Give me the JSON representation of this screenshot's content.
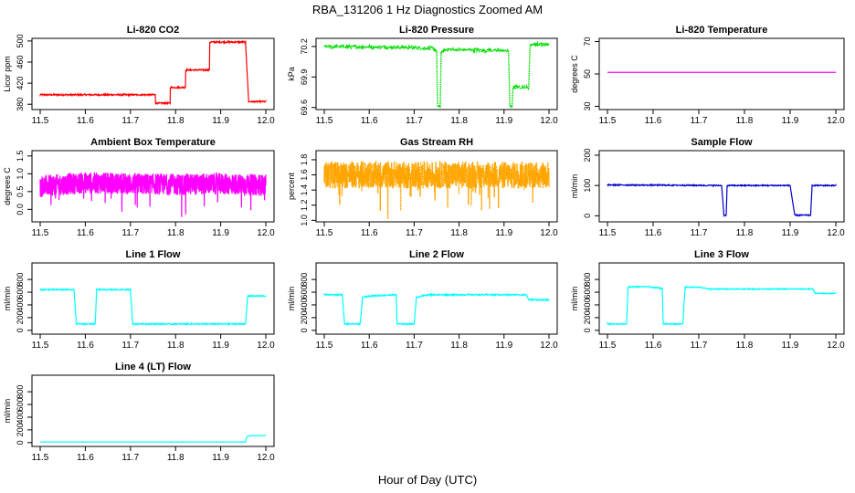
{
  "figure": {
    "title": "RBA_131206  1 Hz Diagnostics Zoomed AM",
    "xlabel": "Hour of Day (UTC)"
  },
  "chart_data": [
    {
      "id": "co2",
      "type": "line",
      "title": "Li-820 CO2",
      "ylabel": "Licor ppm",
      "xlim": [
        11.5,
        12.0
      ],
      "ylim": [
        370,
        505
      ],
      "xticks": [
        "11.5",
        "11.6",
        "11.7",
        "11.8",
        "11.9",
        "12.0"
      ],
      "yticks": [
        {
          "v": 380,
          "label": "380"
        },
        {
          "v": 420,
          "label": "420"
        },
        {
          "v": 460,
          "label": "460"
        },
        {
          "v": 500,
          "label": "500"
        }
      ],
      "color": "#ff0000",
      "noise": 1.5,
      "series": [
        [
          11.5,
          398
        ],
        [
          11.755,
          398
        ],
        [
          11.755,
          382
        ],
        [
          11.788,
          382
        ],
        [
          11.788,
          412
        ],
        [
          11.822,
          412
        ],
        [
          11.822,
          445
        ],
        [
          11.875,
          445
        ],
        [
          11.875,
          498
        ],
        [
          11.955,
          498
        ],
        [
          11.962,
          385
        ],
        [
          12.0,
          385
        ]
      ]
    },
    {
      "id": "pressure",
      "type": "line",
      "title": "Li-820 Pressure",
      "ylabel": "kPa",
      "xlim": [
        11.5,
        12.0
      ],
      "ylim": [
        69.58,
        70.28
      ],
      "xticks": [
        "11.5",
        "11.6",
        "11.7",
        "11.8",
        "11.9",
        "12.0"
      ],
      "yticks": [
        {
          "v": 69.6,
          "label": "69.6"
        },
        {
          "v": 69.9,
          "label": "69.9"
        },
        {
          "v": 70.2,
          "label": "70.2"
        }
      ],
      "color": "#00dd00",
      "noise": 0.015,
      "pointy": true,
      "series": [
        [
          11.5,
          70.2
        ],
        [
          11.7,
          70.19
        ],
        [
          11.742,
          70.18
        ],
        [
          11.75,
          70.15
        ],
        [
          11.752,
          69.62
        ],
        [
          11.758,
          69.6
        ],
        [
          11.76,
          70.14
        ],
        [
          11.77,
          70.17
        ],
        [
          11.9,
          70.16
        ],
        [
          11.91,
          70.15
        ],
        [
          11.913,
          69.62
        ],
        [
          11.918,
          69.6
        ],
        [
          11.92,
          69.8
        ],
        [
          11.955,
          69.8
        ],
        [
          11.958,
          70.22
        ],
        [
          12.0,
          70.22
        ]
      ]
    },
    {
      "id": "temperature",
      "type": "line",
      "title": "Li-820 Temperature",
      "ylabel": "degrees C",
      "xlim": [
        11.5,
        12.0
      ],
      "ylim": [
        28,
        72
      ],
      "xticks": [
        "11.5",
        "11.6",
        "11.7",
        "11.8",
        "11.9",
        "12.0"
      ],
      "yticks": [
        {
          "v": 30,
          "label": "30"
        },
        {
          "v": 50,
          "label": "50"
        },
        {
          "v": 70,
          "label": "70"
        }
      ],
      "color": "#ff00ff",
      "noise": 0,
      "series": [
        [
          11.5,
          51
        ],
        [
          12.0,
          51
        ]
      ]
    },
    {
      "id": "ambient",
      "type": "line",
      "title": "Ambient Box Temperature",
      "ylabel": "degrees C",
      "xlim": [
        11.5,
        12.0
      ],
      "ylim": [
        -0.35,
        1.65
      ],
      "xticks": [
        "11.5",
        "11.6",
        "11.7",
        "11.8",
        "11.9",
        "12.0"
      ],
      "yticks": [
        {
          "v": 0.0,
          "label": "0.0"
        },
        {
          "v": 0.5,
          "label": "0.5"
        },
        {
          "v": 1.0,
          "label": "1.0"
        },
        {
          "v": 1.5,
          "label": "1.5"
        }
      ],
      "color": "#ff00ff",
      "noise": 0.3,
      "dense": true,
      "series": [
        [
          11.5,
          0.65
        ],
        [
          11.6,
          0.75
        ],
        [
          11.7,
          0.72
        ],
        [
          11.8,
          0.7
        ],
        [
          11.9,
          0.72
        ],
        [
          12.0,
          0.68
        ]
      ]
    },
    {
      "id": "rh",
      "type": "line",
      "title": "Gas Stream RH",
      "ylabel": "percent",
      "xlim": [
        11.5,
        12.0
      ],
      "ylim": [
        0.98,
        1.92
      ],
      "xticks": [
        "11.5",
        "11.6",
        "11.7",
        "11.8",
        "11.9",
        "12.0"
      ],
      "yticks": [
        {
          "v": 1.0,
          "label": "1.0"
        },
        {
          "v": 1.2,
          "label": "1.2"
        },
        {
          "v": 1.4,
          "label": "1.4"
        },
        {
          "v": 1.6,
          "label": "1.6"
        },
        {
          "v": 1.8,
          "label": "1.8"
        }
      ],
      "color": "#ffa500",
      "noise": 0.18,
      "dense": true,
      "pointy": true,
      "series": [
        [
          11.5,
          1.6
        ],
        [
          12.0,
          1.6
        ]
      ]
    },
    {
      "id": "sampleflow",
      "type": "line",
      "title": "Sample Flow",
      "ylabel": "ml/min",
      "xlim": [
        11.5,
        12.0
      ],
      "ylim": [
        -20,
        215
      ],
      "xticks": [
        "11.5",
        "11.6",
        "11.7",
        "11.8",
        "11.9",
        "12.0"
      ],
      "yticks": [
        {
          "v": 0,
          "label": "0"
        },
        {
          "v": 100,
          "label": "100"
        },
        {
          "v": 200,
          "label": "200"
        }
      ],
      "color": "#0000cc",
      "noise": 2,
      "series": [
        [
          11.5,
          102
        ],
        [
          11.75,
          100
        ],
        [
          11.755,
          2
        ],
        [
          11.76,
          0
        ],
        [
          11.762,
          100
        ],
        [
          11.9,
          100
        ],
        [
          11.91,
          2
        ],
        [
          11.945,
          2
        ],
        [
          11.948,
          100
        ],
        [
          12.0,
          100
        ]
      ]
    },
    {
      "id": "line1",
      "type": "line",
      "title": "Line 1 Flow",
      "ylabel": "ml/min",
      "xlim": [
        11.5,
        12.0
      ],
      "ylim": [
        -60,
        1060
      ],
      "xticks": [
        "11.5",
        "11.6",
        "11.7",
        "11.8",
        "11.9",
        "12.0"
      ],
      "yticks": [
        {
          "v": 0,
          "label": "0"
        },
        {
          "v": 200,
          "label": "200"
        },
        {
          "v": 400,
          "label": "400"
        },
        {
          "v": 600,
          "label": "600"
        },
        {
          "v": 800,
          "label": "800"
        }
      ],
      "color": "#00ffff",
      "noise": 10,
      "series": [
        [
          11.5,
          640
        ],
        [
          11.575,
          640
        ],
        [
          11.58,
          100
        ],
        [
          11.622,
          100
        ],
        [
          11.625,
          640
        ],
        [
          11.7,
          640
        ],
        [
          11.705,
          100
        ],
        [
          11.955,
          100
        ],
        [
          11.96,
          540
        ],
        [
          12.0,
          540
        ]
      ]
    },
    {
      "id": "line2",
      "type": "line",
      "title": "Line 2 Flow",
      "ylabel": "ml/min",
      "xlim": [
        11.5,
        12.0
      ],
      "ylim": [
        -60,
        1060
      ],
      "xticks": [
        "11.5",
        "11.6",
        "11.7",
        "11.8",
        "11.9",
        "12.0"
      ],
      "yticks": [
        {
          "v": 0,
          "label": "0"
        },
        {
          "v": 200,
          "label": "200"
        },
        {
          "v": 400,
          "label": "400"
        },
        {
          "v": 600,
          "label": "600"
        },
        {
          "v": 800,
          "label": "800"
        }
      ],
      "color": "#00ffff",
      "noise": 10,
      "series": [
        [
          11.5,
          560
        ],
        [
          11.54,
          560
        ],
        [
          11.545,
          100
        ],
        [
          11.58,
          100
        ],
        [
          11.585,
          520
        ],
        [
          11.6,
          540
        ],
        [
          11.66,
          560
        ],
        [
          11.662,
          100
        ],
        [
          11.7,
          100
        ],
        [
          11.705,
          520
        ],
        [
          11.73,
          560
        ],
        [
          11.95,
          560
        ],
        [
          11.955,
          480
        ],
        [
          12.0,
          480
        ]
      ]
    },
    {
      "id": "line3",
      "type": "line",
      "title": "Line 3 Flow",
      "ylabel": "ml/min",
      "xlim": [
        11.5,
        12.0
      ],
      "ylim": [
        -60,
        1060
      ],
      "xticks": [
        "11.5",
        "11.6",
        "11.7",
        "11.8",
        "11.9",
        "12.0"
      ],
      "yticks": [
        {
          "v": 0,
          "label": "0"
        },
        {
          "v": 200,
          "label": "200"
        },
        {
          "v": 400,
          "label": "400"
        },
        {
          "v": 600,
          "label": "600"
        },
        {
          "v": 800,
          "label": "800"
        }
      ],
      "color": "#00ffff",
      "noise": 8,
      "series": [
        [
          11.5,
          100
        ],
        [
          11.542,
          100
        ],
        [
          11.545,
          680
        ],
        [
          11.58,
          690
        ],
        [
          11.62,
          660
        ],
        [
          11.622,
          100
        ],
        [
          11.665,
          100
        ],
        [
          11.67,
          680
        ],
        [
          11.7,
          680
        ],
        [
          11.72,
          650
        ],
        [
          11.95,
          650
        ],
        [
          11.955,
          580
        ],
        [
          12.0,
          580
        ]
      ]
    },
    {
      "id": "line4",
      "type": "line",
      "title": "Line 4 (LT) Flow",
      "ylabel": "ml/min",
      "xlim": [
        11.5,
        12.0
      ],
      "ylim": [
        -60,
        1060
      ],
      "xticks": [
        "11.5",
        "11.6",
        "11.7",
        "11.8",
        "11.9",
        "12.0"
      ],
      "yticks": [
        {
          "v": 0,
          "label": "0"
        },
        {
          "v": 200,
          "label": "200"
        },
        {
          "v": 400,
          "label": "400"
        },
        {
          "v": 600,
          "label": "600"
        },
        {
          "v": 800,
          "label": "800"
        }
      ],
      "color": "#00ffff",
      "noise": 0,
      "series": [
        [
          11.5,
          10
        ],
        [
          11.955,
          10
        ],
        [
          11.958,
          90
        ],
        [
          11.965,
          110
        ],
        [
          12.0,
          110
        ]
      ]
    }
  ]
}
